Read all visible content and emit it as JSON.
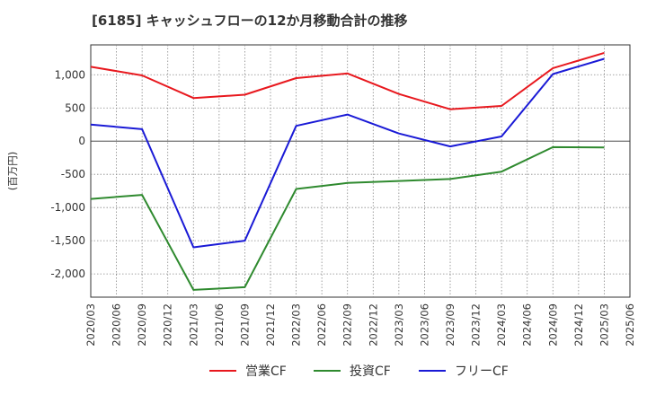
{
  "chart_data": {
    "type": "line",
    "title": "[6185]  キャッシュフローの12か月移動合計の推移",
    "xlabel": "",
    "ylabel": "(百万円)",
    "x": [
      "2020/03",
      "2020/06",
      "2020/09",
      "2020/12",
      "2021/03",
      "2021/06",
      "2021/09",
      "2021/12",
      "2022/03",
      "2022/06",
      "2022/09",
      "2022/12",
      "2023/03",
      "2023/06",
      "2023/09",
      "2023/12",
      "2024/03",
      "2024/06",
      "2024/09",
      "2024/12",
      "2025/03",
      "2025/06"
    ],
    "ylim": [
      -2350,
      1450
    ],
    "yticks": [
      1000,
      500,
      0,
      -500,
      -1000,
      -1500,
      -2000
    ],
    "ytick_labels": [
      "1,000",
      "500",
      "0",
      "-500",
      "-1,000",
      "-1,500",
      "-2,000"
    ],
    "grid": true,
    "legend_position": "bottom",
    "series": [
      {
        "name": "営業CF",
        "color": "#e8181e",
        "points": [
          [
            "2020/03",
            1120
          ],
          [
            "2020/09",
            990
          ],
          [
            "2021/03",
            650
          ],
          [
            "2021/09",
            700
          ],
          [
            "2022/03",
            950
          ],
          [
            "2022/09",
            1020
          ],
          [
            "2023/03",
            710
          ],
          [
            "2023/09",
            480
          ],
          [
            "2024/03",
            530
          ],
          [
            "2024/09",
            1100
          ],
          [
            "2025/03",
            1330
          ]
        ]
      },
      {
        "name": "投資CF",
        "color": "#2f8a2f",
        "points": [
          [
            "2020/03",
            -870
          ],
          [
            "2020/09",
            -810
          ],
          [
            "2021/03",
            -2240
          ],
          [
            "2021/09",
            -2200
          ],
          [
            "2022/03",
            -720
          ],
          [
            "2022/09",
            -630
          ],
          [
            "2023/03",
            -600
          ],
          [
            "2023/09",
            -570
          ],
          [
            "2024/03",
            -460
          ],
          [
            "2024/09",
            -90
          ],
          [
            "2025/03",
            -95
          ]
        ]
      },
      {
        "name": "フリーCF",
        "color": "#1a1ad6",
        "points": [
          [
            "2020/03",
            250
          ],
          [
            "2020/09",
            180
          ],
          [
            "2021/03",
            -1600
          ],
          [
            "2021/09",
            -1500
          ],
          [
            "2022/03",
            230
          ],
          [
            "2022/09",
            400
          ],
          [
            "2023/03",
            115
          ],
          [
            "2023/09",
            -80
          ],
          [
            "2024/03",
            70
          ],
          [
            "2024/09",
            1010
          ],
          [
            "2025/03",
            1240
          ]
        ]
      }
    ]
  }
}
